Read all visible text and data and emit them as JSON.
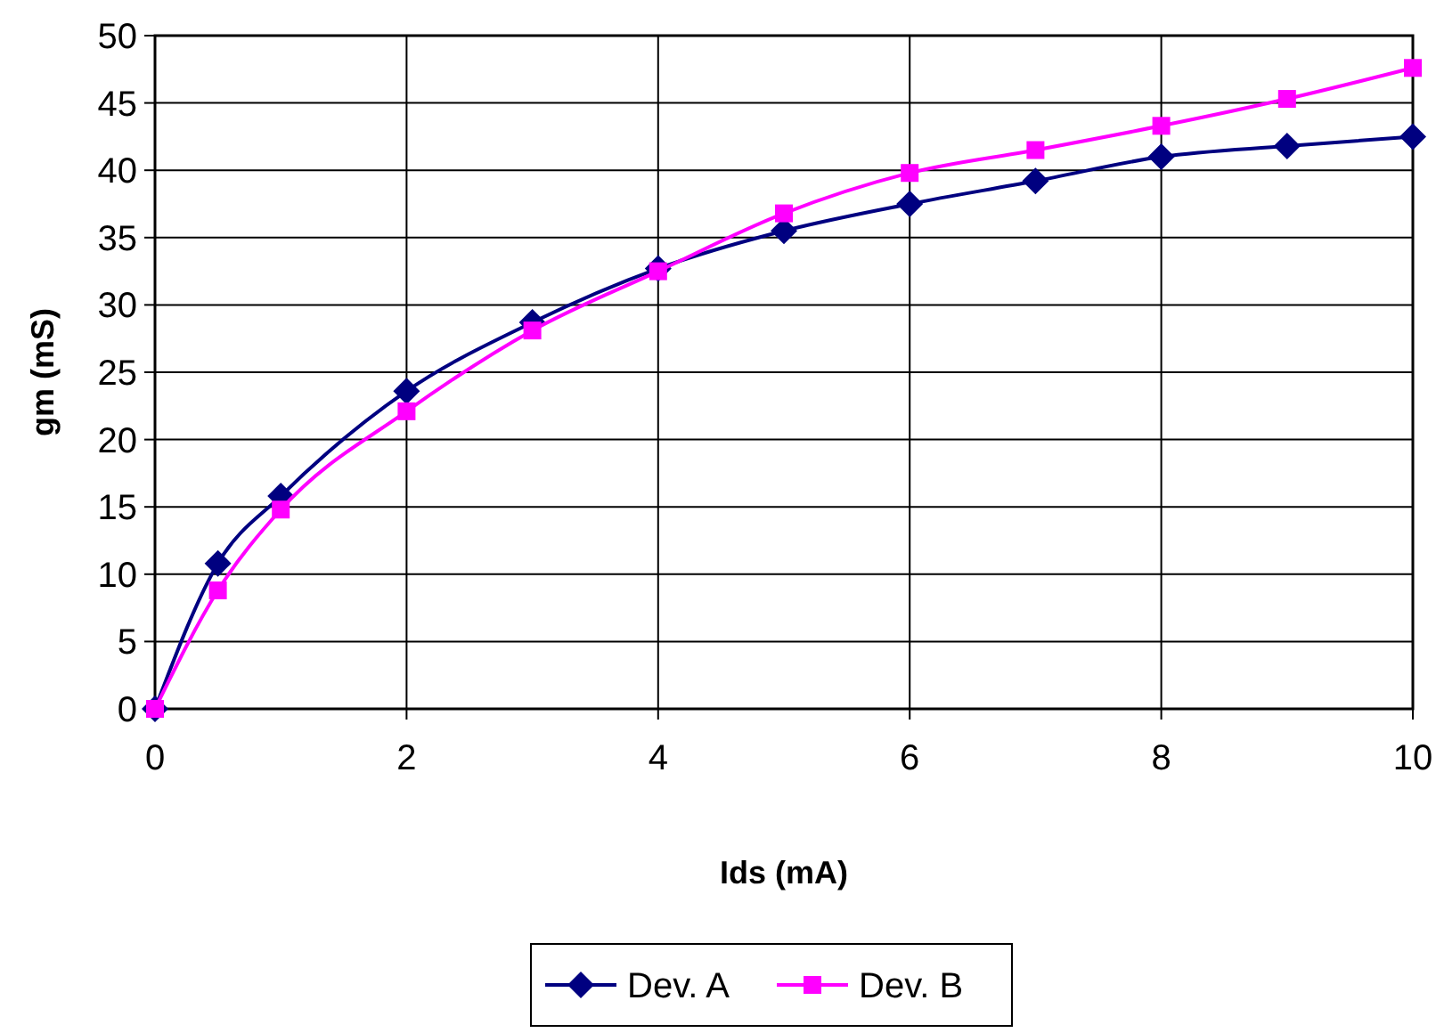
{
  "chart_data": {
    "type": "line",
    "xlabel": "Ids (mA)",
    "ylabel": "gm  (mS)",
    "x": [
      0,
      0.5,
      1,
      2,
      3,
      4,
      5,
      6,
      7,
      8,
      9,
      10
    ],
    "series": [
      {
        "name": "Dev. A",
        "color": "#000080",
        "marker": "diamond",
        "values": [
          0,
          10.8,
          15.8,
          23.6,
          28.7,
          32.7,
          35.5,
          37.5,
          39.2,
          41.0,
          41.8,
          42.5
        ]
      },
      {
        "name": "Dev. B",
        "color": "#ff00ff",
        "marker": "square",
        "values": [
          0,
          8.8,
          14.8,
          22.1,
          28.1,
          32.5,
          36.8,
          39.8,
          41.5,
          43.3,
          45.3,
          47.6
        ]
      }
    ],
    "xlim": [
      0,
      10
    ],
    "xticks": [
      0,
      2,
      4,
      6,
      8,
      10
    ],
    "ylim": [
      0,
      50
    ],
    "yticks": [
      0,
      5,
      10,
      15,
      20,
      25,
      30,
      35,
      40,
      45,
      50
    ],
    "grid": true,
    "legend": "bottom"
  }
}
